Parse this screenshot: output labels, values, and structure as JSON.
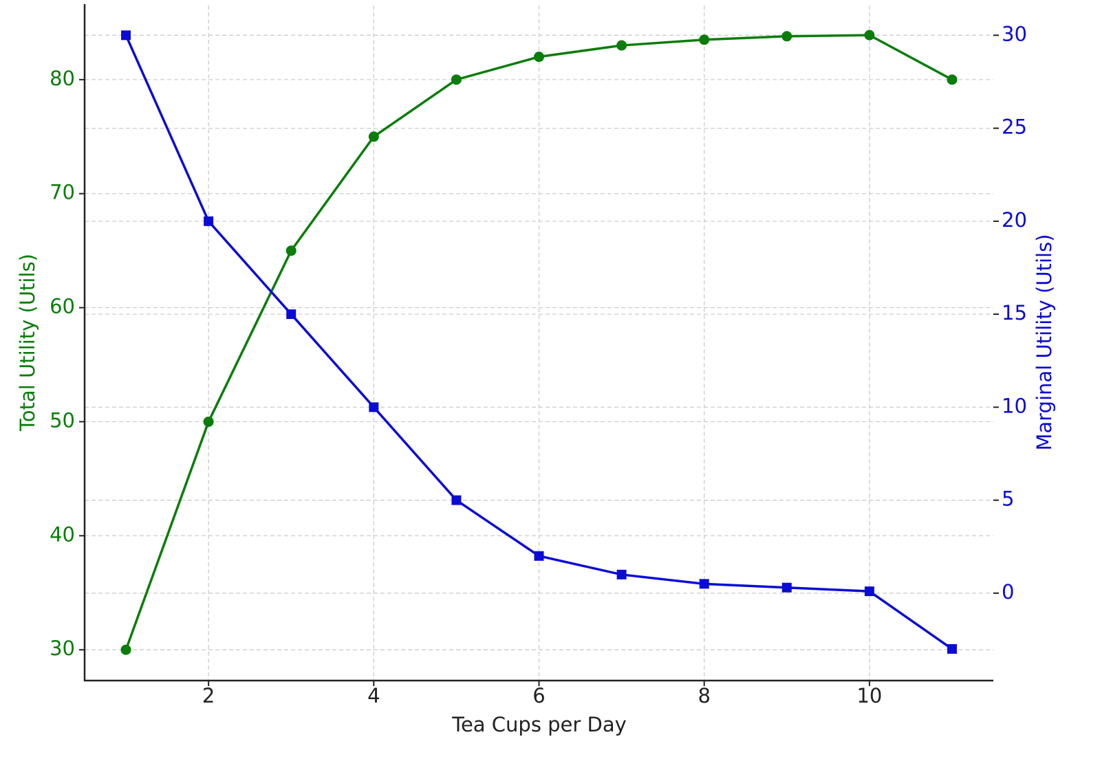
{
  "chart_data": {
    "type": "line",
    "xlabel": "Tea Cups per Day",
    "ylabel": "Total Utility (Utils)",
    "y2label": "Marginal Utility (Utils)",
    "x": [
      1,
      2,
      3,
      4,
      5,
      6,
      7,
      8,
      9,
      10,
      11
    ],
    "series": [
      {
        "name": "Total Utility",
        "color": "#0a7d0a",
        "marker": "circle",
        "axis": "y",
        "values": [
          30,
          50,
          65,
          75,
          80,
          82,
          83,
          83.5,
          83.8,
          83.9,
          80
        ]
      },
      {
        "name": "Marginal Utility",
        "color": "#0b0bd6",
        "marker": "square",
        "axis": "y2",
        "values": [
          30,
          20,
          15,
          10,
          5,
          2,
          1,
          0.5,
          0.3,
          0.1,
          -3
        ]
      }
    ],
    "xlim": [
      0.5,
      11.5
    ],
    "xticks": [
      2,
      4,
      6,
      8,
      10
    ],
    "ylim": [
      27.3,
      86.5
    ],
    "yticks": [
      30,
      40,
      50,
      60,
      70,
      80
    ],
    "y2lim": [
      -4.7,
      31.6
    ],
    "y2ticks": [
      0,
      5,
      10,
      15,
      20,
      25,
      30
    ],
    "grid": true,
    "legend": false
  }
}
